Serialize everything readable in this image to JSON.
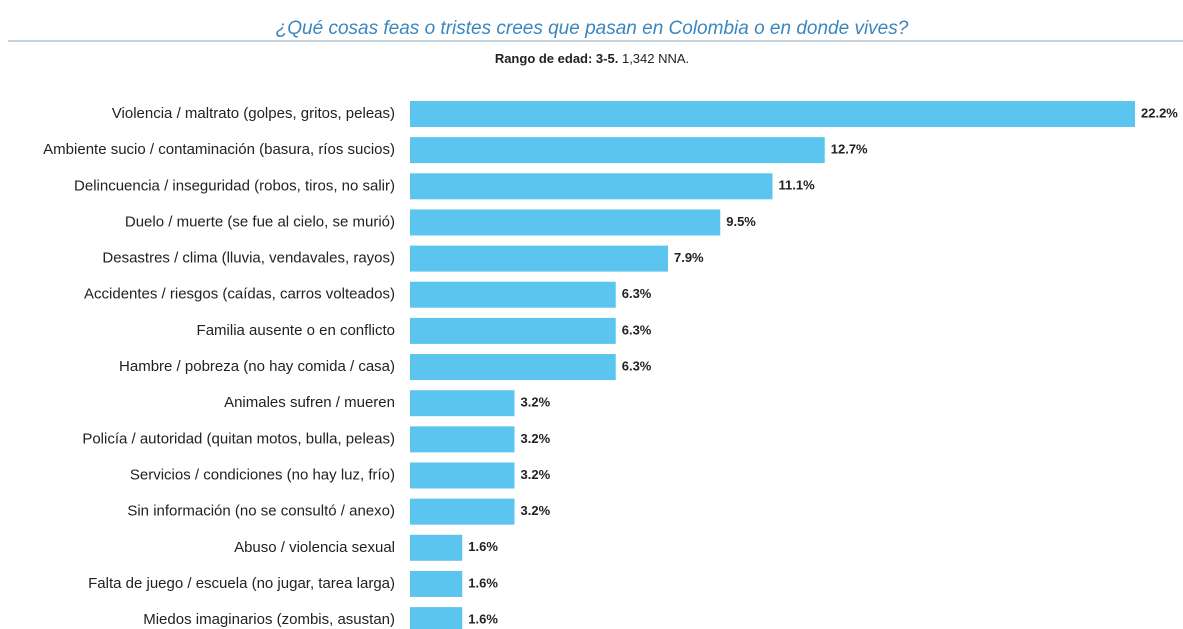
{
  "chart_data": {
    "type": "barh",
    "title": "¿Qué cosas feas o tristes crees que pasan en Colombia o en donde vives?",
    "subtitle": [
      "Rango de edad: 3-5.",
      "1,342 NNA."
    ],
    "categories": [
      "Violencia / maltrato (golpes, gritos, peleas)",
      "Ambiente sucio / contaminación (basura, ríos sucios)",
      "Delincuencia / inseguridad (robos, tiros, no salir)",
      "Duelo / muerte (se fue al cielo, se murió)",
      "Desastres / clima (lluvia, vendavales, rayos)",
      "Accidentes / riesgos (caídas, carros volteados)",
      "Familia ausente o en conflicto",
      "Hambre / pobreza (no hay comida / casa)",
      "Animales sufren / mueren",
      "Policía / autoridad (quitan motos, bulla, peleas)",
      "Servicios / condiciones (no hay luz, frío)",
      "Sin información (no se consultó / anexo)",
      "Abuso / violencia sexual",
      "Falta de juego / escuela (no jugar, tarea larga)",
      "Miedos imaginarios (zombis, asustan)"
    ],
    "values": [
      22.2,
      12.7,
      11.1,
      9.5,
      7.9,
      6.3,
      6.3,
      6.3,
      3.2,
      3.2,
      3.2,
      3.2,
      1.6,
      1.6,
      1.6
    ],
    "value_labels": [
      "22.2%",
      "12.7%",
      "11.1%",
      "9.5%",
      "7.9%",
      "6.3%",
      "6.3%",
      "6.3%",
      "3.2%",
      "3.2%",
      "3.2%",
      "3.2%",
      "1.6%",
      "1.6%",
      "1.6%"
    ],
    "color": "#5bc5ef"
  }
}
